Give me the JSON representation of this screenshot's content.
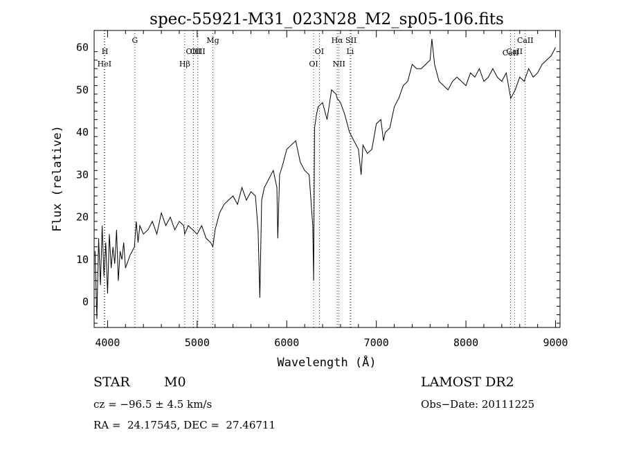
{
  "chart_data": {
    "type": "line",
    "title": "spec-55921-M31_023N28_M2_sp05-106.fits",
    "xlabel": "Wavelength (Å)",
    "ylabel": "Flux (relative)",
    "xlim": [
      3850,
      9050
    ],
    "ylim": [
      -6,
      64
    ],
    "xticks": [
      4000,
      5000,
      6000,
      7000,
      8000,
      9000
    ],
    "yticks": [
      0,
      10,
      20,
      30,
      40,
      50,
      60
    ],
    "grid": false,
    "series": [
      {
        "x": [
          3860,
          3880,
          3900,
          3920,
          3940,
          3960,
          3980,
          4000,
          4020,
          4040,
          4060,
          4080,
          4100,
          4120,
          4140,
          4160,
          4180,
          4200,
          4250,
          4300,
          4320,
          4340,
          4360,
          4400,
          4450,
          4500,
          4550,
          4600,
          4650,
          4700,
          4750,
          4800,
          4850,
          4861,
          4900,
          4950,
          5000,
          5050,
          5100,
          5150,
          5175,
          5200,
          5250,
          5300,
          5350,
          5400,
          5450,
          5500,
          5550,
          5600,
          5650,
          5680,
          5700,
          5720,
          5750,
          5800,
          5850,
          5890,
          5900,
          5920,
          5950,
          6000,
          6050,
          6100,
          6150,
          6200,
          6250,
          6290,
          6300,
          6310,
          6330,
          6350,
          6400,
          6450,
          6500,
          6550,
          6563,
          6600,
          6650,
          6700,
          6750,
          6800,
          6830,
          6850,
          6900,
          6950,
          7000,
          7050,
          7080,
          7100,
          7150,
          7200,
          7250,
          7300,
          7350,
          7400,
          7450,
          7500,
          7550,
          7600,
          7620,
          7650,
          7700,
          7750,
          7800,
          7850,
          7900,
          7950,
          8000,
          8050,
          8100,
          8150,
          8200,
          8250,
          8300,
          8350,
          8400,
          8450,
          8500,
          8550,
          8600,
          8650,
          8700,
          8750,
          8800,
          8850,
          8900,
          8950,
          9000
        ],
        "y": [
          12,
          -4,
          15,
          4,
          18,
          6,
          14,
          2,
          16,
          8,
          13,
          9,
          17,
          5,
          12,
          10,
          14,
          8,
          11,
          13,
          19,
          14,
          18,
          16,
          17,
          19,
          16,
          21,
          18,
          20,
          17,
          19,
          18,
          16,
          18,
          17,
          16,
          18,
          15,
          14,
          13,
          17,
          21,
          23,
          24,
          25,
          23,
          27,
          24,
          26,
          25,
          17,
          1,
          24,
          27,
          29,
          31,
          27,
          15,
          30,
          32,
          36,
          37,
          38,
          33,
          31,
          30,
          18,
          5,
          41,
          44,
          46,
          47,
          43,
          50,
          49,
          48,
          47,
          44,
          40,
          38,
          36,
          30,
          37,
          35,
          36,
          42,
          43,
          38,
          40,
          41,
          46,
          48,
          51,
          52,
          56,
          55,
          55,
          56,
          57,
          62,
          56,
          52,
          51,
          50,
          52,
          53,
          52,
          51,
          54,
          53,
          55,
          52,
          53,
          55,
          53,
          52,
          54,
          48,
          50,
          53,
          52,
          55,
          53,
          54,
          56,
          57,
          58,
          60
        ]
      }
    ],
    "line_labels": [
      {
        "label": "HeI",
        "x": 3965,
        "tier": 3
      },
      {
        "label": "H",
        "x": 3970,
        "tier": 1
      },
      {
        "label": "G",
        "x": 4305,
        "tier": 0
      },
      {
        "label": "Hβ",
        "x": 4861,
        "tier": 3
      },
      {
        "label": "OIII",
        "x": 4959,
        "tier": 1
      },
      {
        "label": "OIII",
        "x": 5007,
        "tier": 1
      },
      {
        "label": "Mg",
        "x": 5175,
        "tier": 0
      },
      {
        "label": "OI",
        "x": 6300,
        "tier": 3
      },
      {
        "label": "OI",
        "x": 6364,
        "tier": 1
      },
      {
        "label": "Hα",
        "x": 6563,
        "tier": 0
      },
      {
        "label": "SII",
        "x": 6717,
        "tier": 0
      },
      {
        "label": "NII",
        "x": 6583,
        "tier": 3
      },
      {
        "label": "Li",
        "x": 6708,
        "tier": 1
      },
      {
        "label": "CaII",
        "x": 8498,
        "tier": 2
      },
      {
        "label": "CaII",
        "x": 8542,
        "tier": 1
      },
      {
        "label": "CaII",
        "x": 8662,
        "tier": 0
      }
    ]
  },
  "info": {
    "class": "STAR",
    "subclass": "M0",
    "survey": "LAMOST DR2",
    "velocity": "cz = −96.5 ± 4.5 km/s",
    "obs_date": "Obs−Date: 20111225",
    "coords": "RA =  24.17545, DEC =  27.46711"
  }
}
